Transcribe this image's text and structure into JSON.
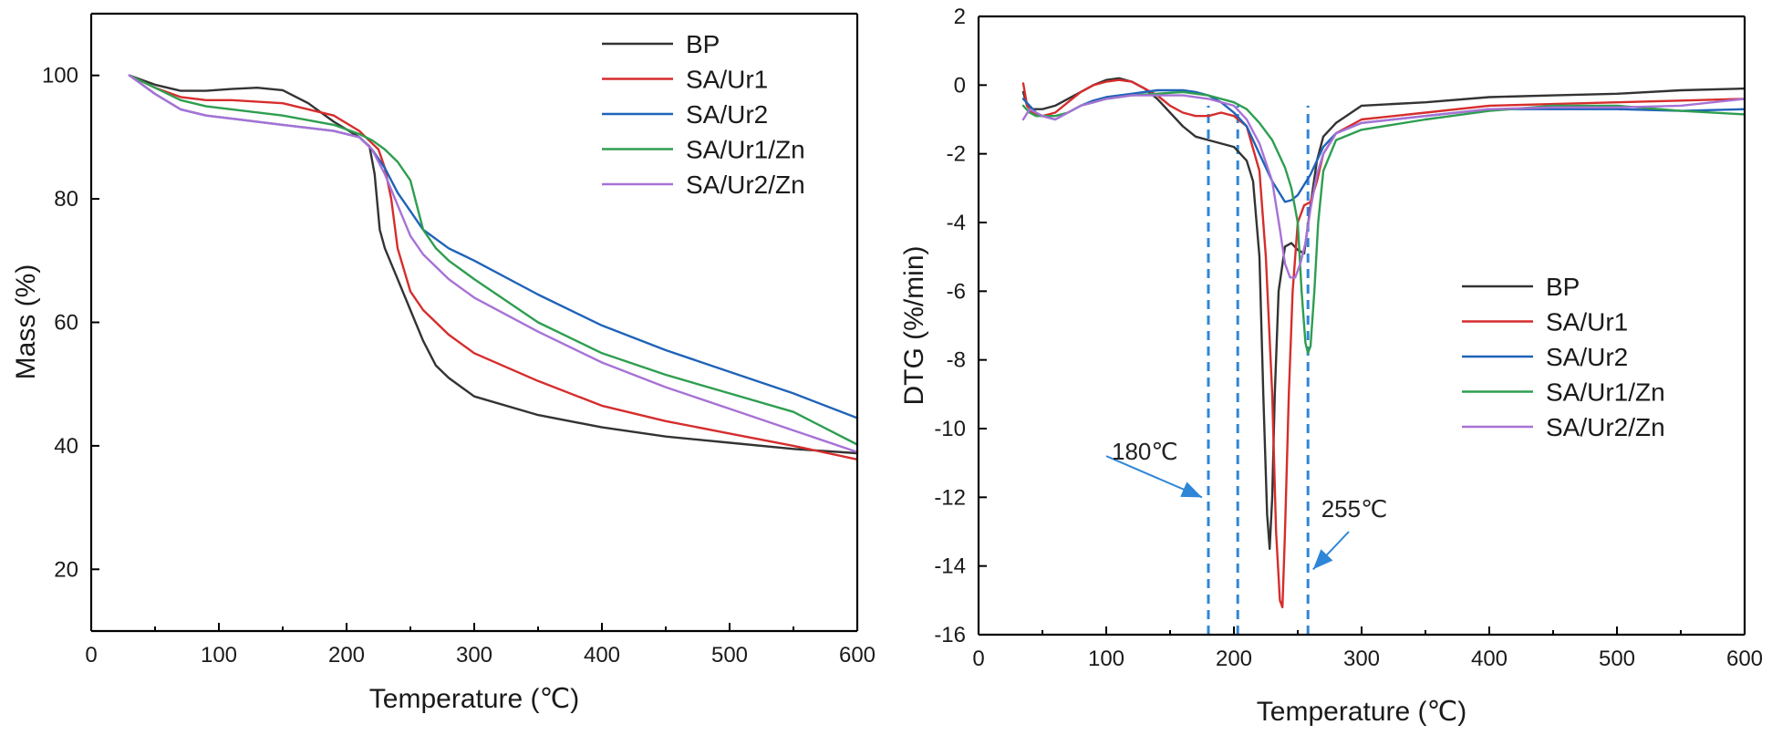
{
  "colors": {
    "BP": "#333333",
    "SA/Ur1": "#d62d2d",
    "SA/Ur2": "#1f63b8",
    "SA/Ur1/Zn": "#2e9e50",
    "SA/Ur2/Zn": "#a772d6",
    "annotation": "#2f86d6"
  },
  "chart_data": [
    {
      "type": "line",
      "title": "",
      "xlabel": "Temperature (℃)",
      "ylabel": "Mass (%)",
      "xlim": [
        0,
        600
      ],
      "ylim": [
        10,
        110
      ],
      "xticks": [
        0,
        100,
        200,
        300,
        400,
        500,
        600
      ],
      "yticks": [
        20,
        40,
        60,
        80,
        100
      ],
      "legend": "top-right",
      "series": [
        {
          "name": "BP",
          "x": [
            30,
            50,
            70,
            90,
            110,
            130,
            150,
            170,
            190,
            210,
            218,
            222,
            226,
            230,
            240,
            250,
            260,
            270,
            280,
            300,
            350,
            400,
            450,
            500,
            550,
            600
          ],
          "y": [
            100,
            98.5,
            97.5,
            97.5,
            97.8,
            98,
            97.6,
            95.5,
            92.5,
            90,
            88.5,
            84,
            75,
            72,
            67,
            62,
            57,
            53,
            51,
            48,
            45,
            43,
            41.5,
            40.5,
            39.5,
            38.8
          ]
        },
        {
          "name": "SA/Ur1",
          "x": [
            30,
            50,
            70,
            90,
            110,
            150,
            190,
            210,
            220,
            225,
            230,
            235,
            240,
            250,
            260,
            280,
            300,
            350,
            400,
            450,
            500,
            550,
            600
          ],
          "y": [
            100,
            98,
            96.5,
            96,
            96,
            95.5,
            93.5,
            91,
            89,
            88,
            85,
            80,
            72,
            65,
            62,
            58,
            55,
            50.5,
            46.5,
            44,
            42,
            40,
            37.8
          ]
        },
        {
          "name": "SA/Ur2",
          "x": [
            30,
            50,
            70,
            90,
            110,
            150,
            190,
            210,
            220,
            230,
            240,
            250,
            260,
            280,
            300,
            350,
            400,
            450,
            500,
            550,
            600
          ],
          "y": [
            100,
            97,
            94.5,
            93.5,
            93,
            92,
            91,
            90,
            88,
            85,
            81,
            78,
            75,
            72,
            70,
            64.5,
            59.5,
            55.5,
            52,
            48.5,
            44.5
          ]
        },
        {
          "name": "SA/Ur1/Zn",
          "x": [
            30,
            50,
            70,
            90,
            110,
            150,
            190,
            210,
            220,
            230,
            240,
            250,
            255,
            260,
            270,
            280,
            300,
            350,
            400,
            450,
            500,
            550,
            600
          ],
          "y": [
            100,
            98,
            96,
            95,
            94.5,
            93.5,
            92,
            90.5,
            89.5,
            88,
            86,
            83,
            79,
            75,
            72,
            70,
            67,
            60,
            55,
            51.5,
            48.5,
            45.5,
            40.2
          ]
        },
        {
          "name": "SA/Ur2/Zn",
          "x": [
            30,
            50,
            70,
            90,
            110,
            150,
            190,
            210,
            220,
            230,
            240,
            250,
            260,
            280,
            300,
            350,
            400,
            450,
            500,
            550,
            600
          ],
          "y": [
            100,
            97,
            94.5,
            93.5,
            93,
            92,
            91,
            90,
            88,
            84,
            79,
            74,
            71,
            67,
            64,
            58.5,
            53.5,
            49.5,
            46,
            42.5,
            39
          ]
        }
      ]
    },
    {
      "type": "line",
      "title": "",
      "xlabel": "Temperature (℃)",
      "ylabel": "DTG (%/min)",
      "xlim": [
        0,
        600
      ],
      "ylim": [
        -16,
        2
      ],
      "xticks": [
        0,
        100,
        200,
        300,
        400,
        500,
        600
      ],
      "yticks": [
        2,
        0,
        -2,
        -4,
        -6,
        -8,
        -10,
        -12,
        -14,
        -16
      ],
      "legend": "right",
      "series": [
        {
          "name": "BP",
          "x": [
            35,
            38,
            42,
            50,
            60,
            70,
            80,
            90,
            100,
            110,
            120,
            130,
            140,
            150,
            160,
            170,
            180,
            190,
            200,
            210,
            215,
            220,
            223,
            226,
            228,
            230,
            232,
            235,
            240,
            245,
            250,
            255,
            260,
            265,
            270,
            280,
            300,
            350,
            400,
            450,
            500,
            550,
            600
          ],
          "y": [
            -0.2,
            -0.6,
            -0.7,
            -0.7,
            -0.6,
            -0.4,
            -0.2,
            0,
            0.15,
            0.2,
            0.1,
            -0.1,
            -0.4,
            -0.8,
            -1.2,
            -1.5,
            -1.6,
            -1.7,
            -1.8,
            -2.2,
            -2.8,
            -5,
            -9,
            -12.5,
            -13.5,
            -12,
            -9,
            -6,
            -4.7,
            -4.6,
            -4.8,
            -4.9,
            -3.5,
            -2.2,
            -1.5,
            -1.1,
            -0.6,
            -0.5,
            -0.35,
            -0.3,
            -0.25,
            -0.15,
            -0.1
          ]
        },
        {
          "name": "SA/Ur1",
          "x": [
            35,
            38,
            42,
            50,
            60,
            70,
            80,
            90,
            100,
            110,
            120,
            130,
            140,
            150,
            160,
            170,
            180,
            190,
            200,
            210,
            220,
            225,
            230,
            233,
            236,
            238,
            240,
            243,
            246,
            250,
            255,
            260,
            265,
            270,
            280,
            300,
            350,
            400,
            450,
            500,
            550,
            600
          ],
          "y": [
            0.05,
            -0.6,
            -0.8,
            -0.9,
            -0.8,
            -0.5,
            -0.2,
            0,
            0.1,
            0.15,
            0.1,
            -0.1,
            -0.3,
            -0.6,
            -0.8,
            -0.9,
            -0.9,
            -0.8,
            -0.9,
            -1.2,
            -2.5,
            -5,
            -9,
            -13,
            -15,
            -15.2,
            -13,
            -9,
            -6,
            -4,
            -3.5,
            -3.4,
            -2.8,
            -2,
            -1.4,
            -1,
            -0.8,
            -0.6,
            -0.55,
            -0.5,
            -0.45,
            -0.4
          ]
        },
        {
          "name": "SA/Ur2",
          "x": [
            35,
            40,
            45,
            50,
            60,
            70,
            80,
            90,
            100,
            120,
            140,
            160,
            170,
            180,
            190,
            200,
            210,
            220,
            230,
            240,
            245,
            250,
            255,
            260,
            265,
            270,
            280,
            300,
            350,
            400,
            450,
            500,
            550,
            600
          ],
          "y": [
            -0.4,
            -0.6,
            -0.8,
            -0.9,
            -1,
            -0.8,
            -0.6,
            -0.45,
            -0.35,
            -0.25,
            -0.15,
            -0.15,
            -0.2,
            -0.3,
            -0.5,
            -0.8,
            -1.2,
            -2,
            -2.8,
            -3.4,
            -3.35,
            -3.2,
            -2.9,
            -2.6,
            -2.2,
            -1.8,
            -1.4,
            -1.1,
            -0.9,
            -0.7,
            -0.7,
            -0.7,
            -0.75,
            -0.7
          ]
        },
        {
          "name": "SA/Ur1/Zn",
          "x": [
            35,
            40,
            45,
            50,
            60,
            70,
            80,
            90,
            100,
            120,
            140,
            160,
            180,
            200,
            210,
            220,
            230,
            240,
            245,
            250,
            253,
            256,
            258,
            260,
            263,
            266,
            270,
            280,
            300,
            350,
            400,
            450,
            500,
            550,
            600
          ],
          "y": [
            -0.6,
            -0.8,
            -0.9,
            -0.9,
            -0.9,
            -0.8,
            -0.6,
            -0.5,
            -0.4,
            -0.3,
            -0.25,
            -0.2,
            -0.3,
            -0.5,
            -0.7,
            -1.1,
            -1.6,
            -2.4,
            -3,
            -4,
            -6,
            -7.5,
            -7.8,
            -7.6,
            -6,
            -4,
            -2.5,
            -1.6,
            -1.3,
            -1,
            -0.75,
            -0.6,
            -0.6,
            -0.75,
            -0.85
          ]
        },
        {
          "name": "SA/Ur2/Zn",
          "x": [
            35,
            40,
            45,
            50,
            60,
            70,
            80,
            90,
            100,
            120,
            140,
            160,
            180,
            200,
            210,
            220,
            230,
            236,
            240,
            244,
            248,
            252,
            256,
            260,
            265,
            270,
            280,
            300,
            350,
            400,
            450,
            500,
            550,
            600
          ],
          "y": [
            -1,
            -0.7,
            -0.8,
            -0.9,
            -1,
            -0.8,
            -0.6,
            -0.5,
            -0.4,
            -0.3,
            -0.3,
            -0.3,
            -0.4,
            -0.6,
            -1,
            -1.7,
            -2.8,
            -4.2,
            -5.2,
            -5.6,
            -5.6,
            -5.2,
            -4.6,
            -3.6,
            -2.6,
            -2,
            -1.4,
            -1.1,
            -0.9,
            -0.7,
            -0.65,
            -0.65,
            -0.6,
            -0.4
          ]
        }
      ],
      "guide_lines_x": [
        180,
        203,
        258
      ],
      "annotations": [
        {
          "label": "180℃",
          "arrow_from": [
            100,
            -10.8
          ],
          "arrow_to": [
            175,
            -12
          ]
        },
        {
          "label": "255℃",
          "arrow_from": [
            290,
            -13
          ],
          "arrow_to": [
            262,
            -14.1
          ]
        }
      ]
    }
  ]
}
